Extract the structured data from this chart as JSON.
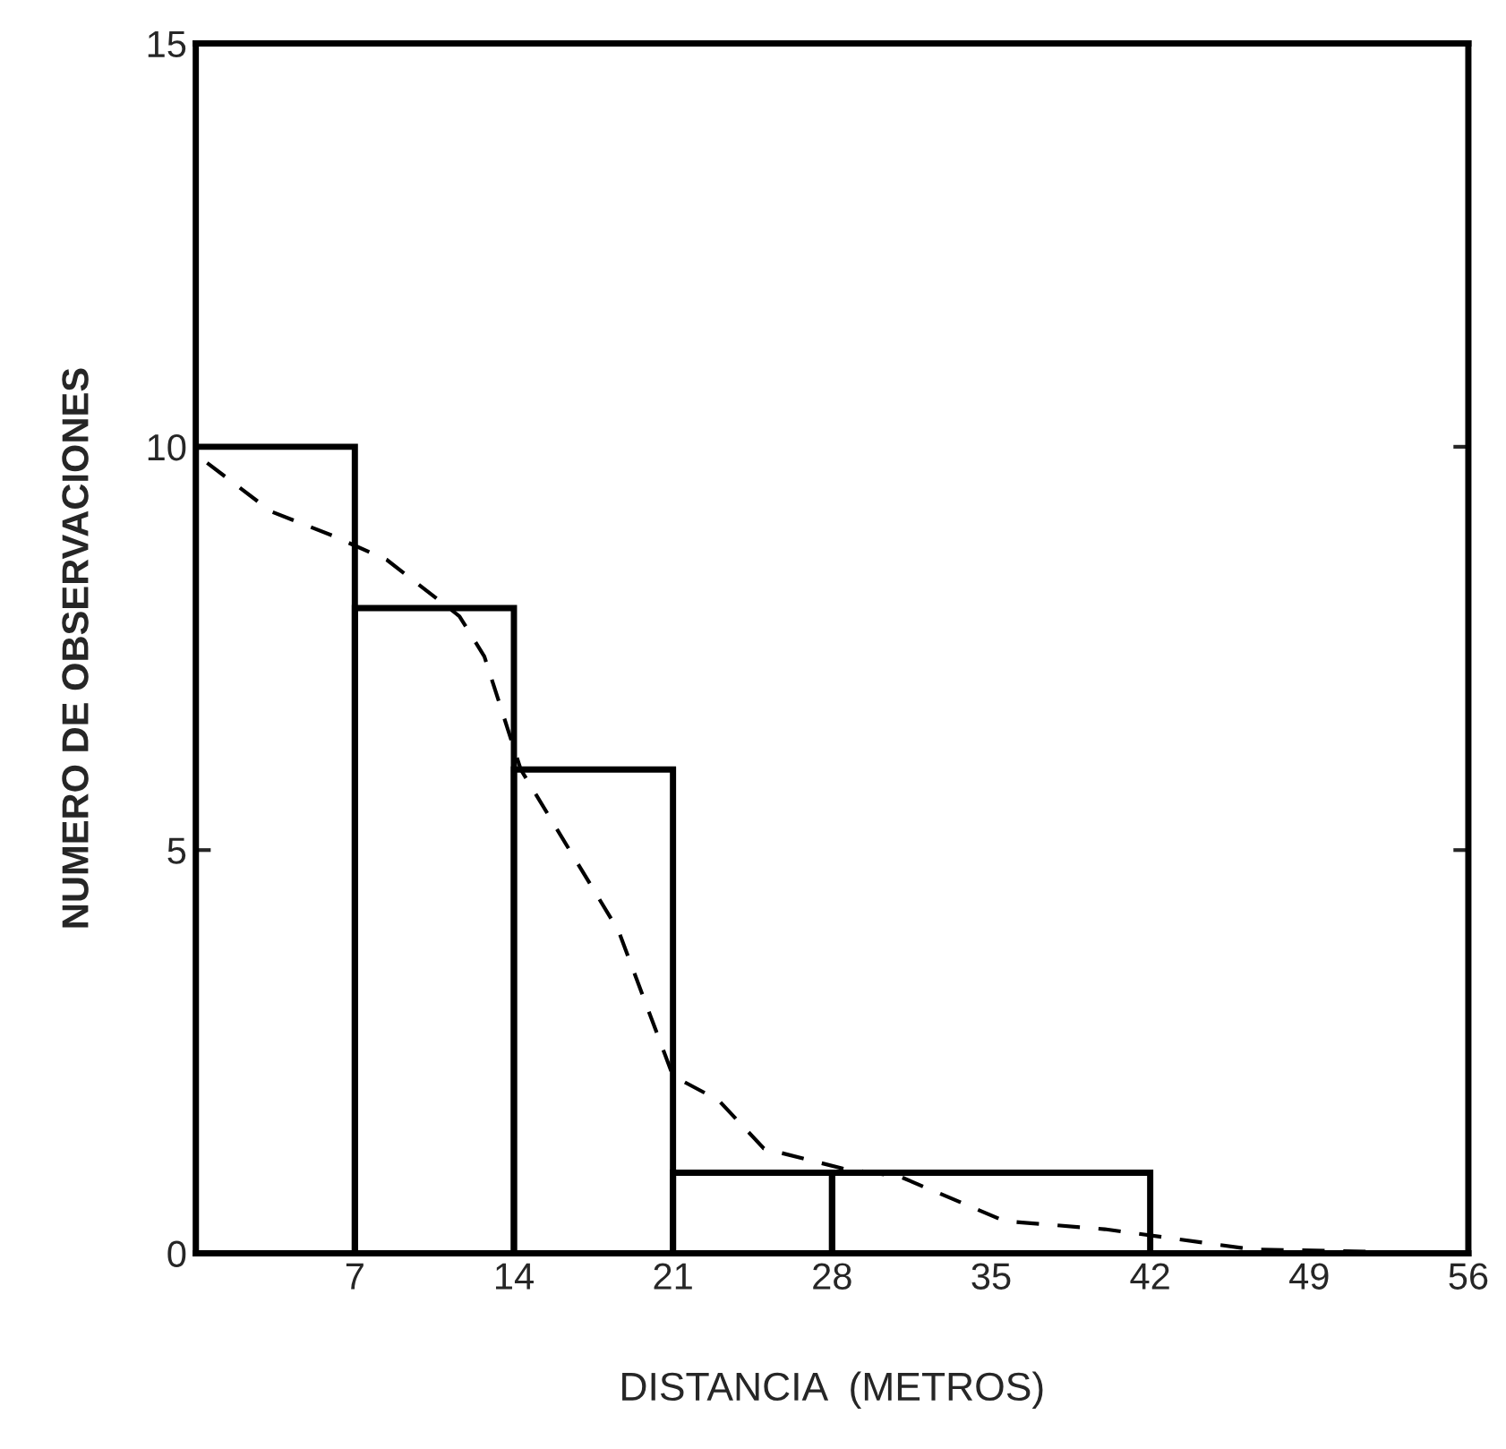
{
  "chart_data": {
    "type": "histogram",
    "xlabel": "DISTANCIA  (METROS)",
    "ylabel": "NUMERO DE OBSERVACIONES",
    "bins": [
      0,
      7,
      14,
      21,
      28,
      42,
      56
    ],
    "values": [
      10,
      8,
      6,
      1,
      1,
      0
    ],
    "color": "#000000",
    "series": [
      {
        "type": "line",
        "line_style": "dashed",
        "color": "#000000",
        "x": [
          0.5,
          3.3,
          6,
          8.4,
          11.6,
          12.7,
          14.3,
          18.6,
          21,
          23,
          25,
          28.5,
          31,
          35.6,
          40,
          46.5,
          52
        ],
        "values": [
          9.8,
          9.2,
          8.9,
          8.6,
          7.9,
          7.4,
          6,
          4,
          2.2,
          1.9,
          1.3,
          1.05,
          0.95,
          0.4,
          0.3,
          0.05,
          0.02
        ]
      }
    ],
    "xlim": [
      0,
      56
    ],
    "xticks": [
      7,
      14,
      21,
      28,
      35,
      42,
      49,
      56
    ],
    "ylim": [
      0,
      15
    ],
    "yticks": [
      0,
      5,
      10,
      15
    ],
    "grid": false,
    "legend": false
  }
}
